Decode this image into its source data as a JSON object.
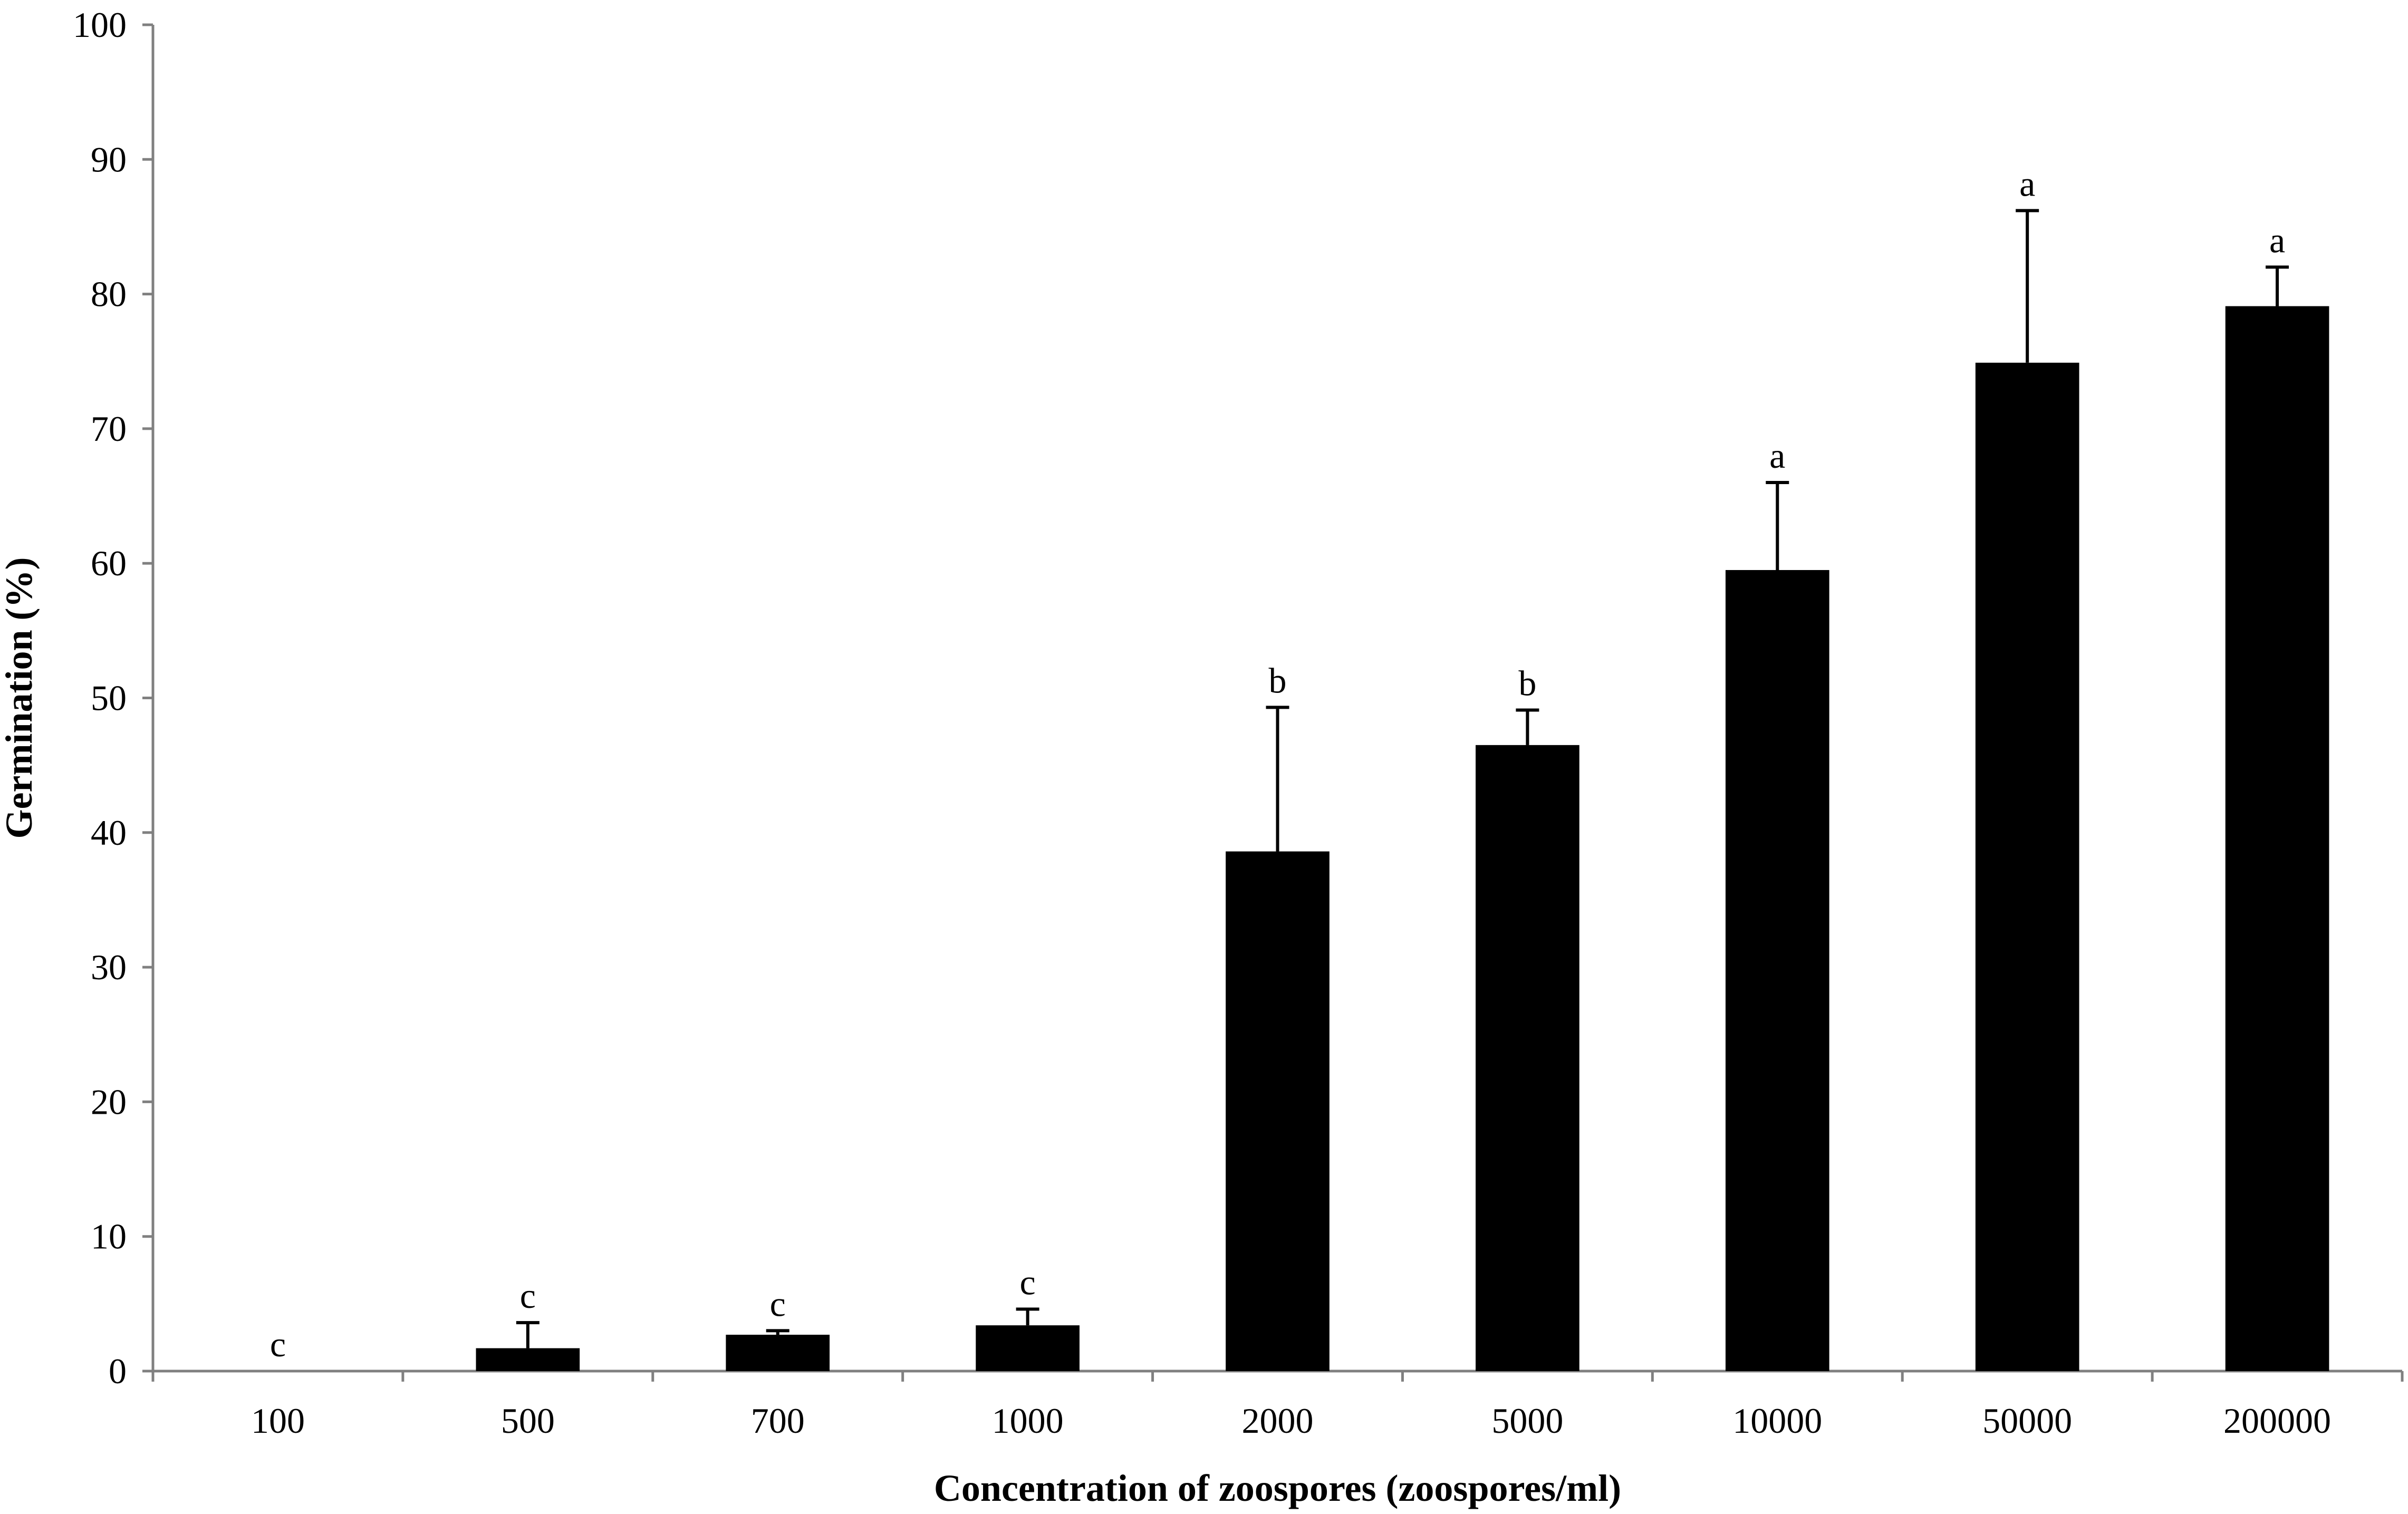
{
  "chart_data": {
    "type": "bar",
    "title": "",
    "xlabel": "Concentration of zoospores (zoospores/ml)",
    "ylabel": "Germination (%)",
    "ylim": [
      0,
      100
    ],
    "yticks": [
      0,
      10,
      20,
      30,
      40,
      50,
      60,
      70,
      80,
      90,
      100
    ],
    "grid": false,
    "legend": "none",
    "categories": [
      "100",
      "500",
      "700",
      "1000",
      "2000",
      "5000",
      "10000",
      "50000",
      "200000"
    ],
    "series": [
      {
        "values": [
          0,
          1.7,
          2.7,
          3.4,
          38.6,
          46.5,
          59.5,
          74.9,
          79.1
        ],
        "error_upper": [
          0,
          1.9,
          0.3,
          1.2,
          10.7,
          2.6,
          6.5,
          11.3,
          2.9
        ],
        "significance": [
          "c",
          "c",
          "c",
          "c",
          "b",
          "b",
          "a",
          "a",
          "a"
        ]
      }
    ],
    "colors": {
      "bar": "#000000",
      "axis": "#808080"
    }
  }
}
